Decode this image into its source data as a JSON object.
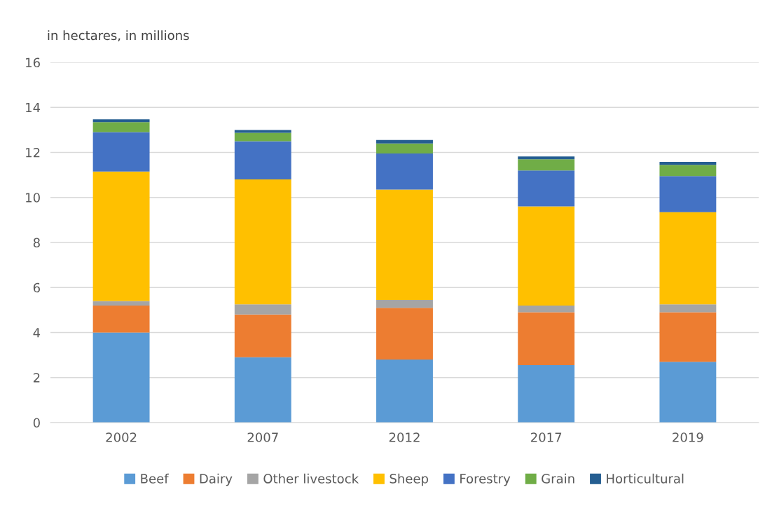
{
  "chart_data": {
    "type": "bar",
    "stacked": true,
    "ylabel": "in hectares, in millions",
    "categories": [
      "2002",
      "2007",
      "2012",
      "2017",
      "2019"
    ],
    "series": [
      {
        "name": "Beef",
        "color": "#5b9bd5",
        "values": [
          4.0,
          2.9,
          2.8,
          2.55,
          2.7
        ]
      },
      {
        "name": "Dairy",
        "color": "#ed7d31",
        "values": [
          1.2,
          1.9,
          2.3,
          2.35,
          2.2
        ]
      },
      {
        "name": "Other livestock",
        "color": "#a5a5a5",
        "values": [
          0.2,
          0.45,
          0.35,
          0.3,
          0.35
        ]
      },
      {
        "name": "Sheep",
        "color": "#ffc000",
        "values": [
          5.75,
          5.55,
          4.9,
          4.4,
          4.1
        ]
      },
      {
        "name": "Forestry",
        "color": "#4472c4",
        "values": [
          1.75,
          1.7,
          1.6,
          1.6,
          1.6
        ]
      },
      {
        "name": "Grain",
        "color": "#70ad47",
        "values": [
          0.45,
          0.37,
          0.45,
          0.5,
          0.5
        ]
      },
      {
        "name": "Horticultural",
        "color": "#255e91",
        "values": [
          0.12,
          0.13,
          0.15,
          0.12,
          0.13
        ]
      }
    ],
    "ylim": [
      0,
      16
    ],
    "yticks": [
      0,
      2,
      4,
      6,
      8,
      10,
      12,
      14,
      16
    ],
    "grid": "y",
    "legend": "bottom"
  }
}
